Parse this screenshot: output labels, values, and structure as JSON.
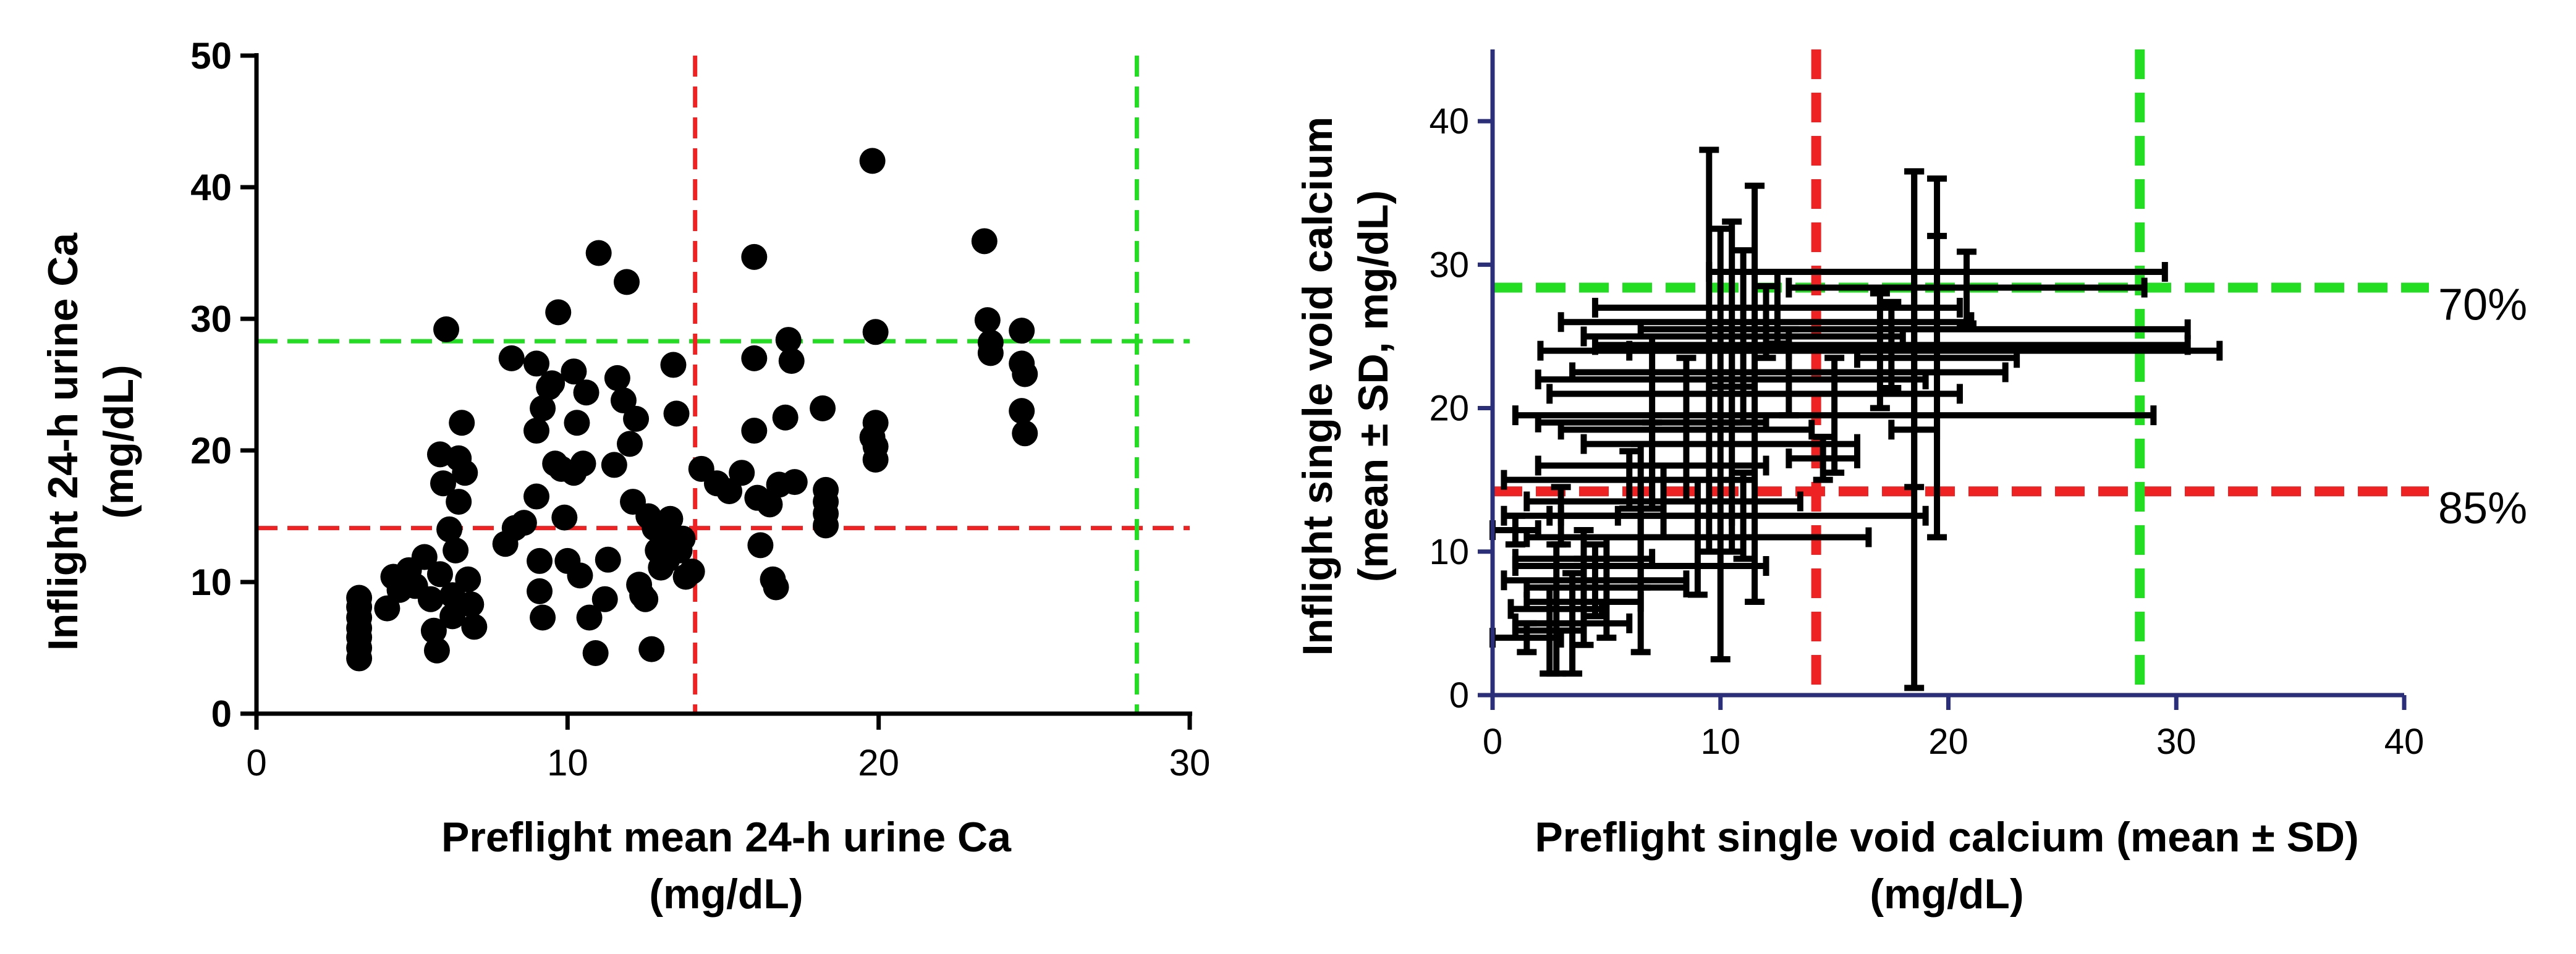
{
  "chart_data": [
    {
      "type": "scatter",
      "xlabel": "Preflight mean 24-h urine Ca",
      "xlabel_unit": "(mg/dL)",
      "ylabel": "Inflight 24-h urine Ca",
      "ylabel_unit": "(mg/dL)",
      "xlim": [
        0,
        30
      ],
      "ylim": [
        0,
        50
      ],
      "xticks": [
        "0",
        "10",
        "20",
        "30"
      ],
      "yticks": [
        "0",
        "10",
        "20",
        "30",
        "40",
        "50"
      ],
      "grid": false,
      "axis_color": "#000000",
      "point_color": "#000000",
      "reference_lines": [
        {
          "orientation": "horizontal",
          "value": 28.3,
          "color": "#22dd22"
        },
        {
          "orientation": "horizontal",
          "value": 14.1,
          "color": "#ee2222"
        },
        {
          "orientation": "vertical",
          "value": 14.1,
          "color": "#ee2222"
        },
        {
          "orientation": "vertical",
          "value": 28.3,
          "color": "#22dd22"
        }
      ],
      "points": [
        [
          3.3,
          4.2
        ],
        [
          3.3,
          5.0
        ],
        [
          3.3,
          5.8
        ],
        [
          3.3,
          6.5
        ],
        [
          3.3,
          7.3
        ],
        [
          3.3,
          8.1
        ],
        [
          3.3,
          8.8
        ],
        [
          4.2,
          8.0
        ],
        [
          4.4,
          10.4
        ],
        [
          4.6,
          9.4
        ],
        [
          4.9,
          10.9
        ],
        [
          5.1,
          9.7
        ],
        [
          5.4,
          11.9
        ],
        [
          5.6,
          8.7
        ],
        [
          5.7,
          6.3
        ],
        [
          5.8,
          4.8
        ],
        [
          5.9,
          10.6
        ],
        [
          5.9,
          19.7
        ],
        [
          6.0,
          17.5
        ],
        [
          6.1,
          29.2
        ],
        [
          6.2,
          14.0
        ],
        [
          6.3,
          9.0
        ],
        [
          6.3,
          7.4
        ],
        [
          6.4,
          12.4
        ],
        [
          6.5,
          16.1
        ],
        [
          6.5,
          19.4
        ],
        [
          6.6,
          22.1
        ],
        [
          6.7,
          18.3
        ],
        [
          6.8,
          10.2
        ],
        [
          6.9,
          8.3
        ],
        [
          7.0,
          6.6
        ],
        [
          8.0,
          12.9
        ],
        [
          8.2,
          27.0
        ],
        [
          8.3,
          14.1
        ],
        [
          8.6,
          14.5
        ],
        [
          9.0,
          26.6
        ],
        [
          9.0,
          16.5
        ],
        [
          9.0,
          21.5
        ],
        [
          9.1,
          11.6
        ],
        [
          9.1,
          9.3
        ],
        [
          9.2,
          7.3
        ],
        [
          9.2,
          23.2
        ],
        [
          9.4,
          24.8
        ],
        [
          9.5,
          25.1
        ],
        [
          9.6,
          19.0
        ],
        [
          9.7,
          30.5
        ],
        [
          9.8,
          18.6
        ],
        [
          9.9,
          14.9
        ],
        [
          10.0,
          11.6
        ],
        [
          10.2,
          18.3
        ],
        [
          10.2,
          26.0
        ],
        [
          10.3,
          22.1
        ],
        [
          10.4,
          10.5
        ],
        [
          10.5,
          19.0
        ],
        [
          10.6,
          24.4
        ],
        [
          10.7,
          7.3
        ],
        [
          10.9,
          4.6
        ],
        [
          11.0,
          35.0
        ],
        [
          11.2,
          8.7
        ],
        [
          11.3,
          11.7
        ],
        [
          11.5,
          18.9
        ],
        [
          11.6,
          25.5
        ],
        [
          11.8,
          23.8
        ],
        [
          11.9,
          32.8
        ],
        [
          12.0,
          20.5
        ],
        [
          12.1,
          16.1
        ],
        [
          12.2,
          22.4
        ],
        [
          12.3,
          9.8
        ],
        [
          12.4,
          9.0
        ],
        [
          12.5,
          8.7
        ],
        [
          12.6,
          15.0
        ],
        [
          12.7,
          4.9
        ],
        [
          12.8,
          14.1
        ],
        [
          12.9,
          12.4
        ],
        [
          13.0,
          11.1
        ],
        [
          13.1,
          13.6
        ],
        [
          13.2,
          11.7
        ],
        [
          13.3,
          14.8
        ],
        [
          13.4,
          26.5
        ],
        [
          13.5,
          22.8
        ],
        [
          13.6,
          12.4
        ],
        [
          13.7,
          13.3
        ],
        [
          13.8,
          10.4
        ],
        [
          14.0,
          10.8
        ],
        [
          14.3,
          18.6
        ],
        [
          14.8,
          17.5
        ],
        [
          15.2,
          16.9
        ],
        [
          15.6,
          18.3
        ],
        [
          16.0,
          34.7
        ],
        [
          16.0,
          27.0
        ],
        [
          16.0,
          21.5
        ],
        [
          16.1,
          16.4
        ],
        [
          16.2,
          12.8
        ],
        [
          16.5,
          15.9
        ],
        [
          16.6,
          10.2
        ],
        [
          16.7,
          9.6
        ],
        [
          16.8,
          17.4
        ],
        [
          17.0,
          22.5
        ],
        [
          17.1,
          28.4
        ],
        [
          17.2,
          26.8
        ],
        [
          17.3,
          17.6
        ],
        [
          18.2,
          23.2
        ],
        [
          18.3,
          17.0
        ],
        [
          18.3,
          16.1
        ],
        [
          18.3,
          15.2
        ],
        [
          18.3,
          14.3
        ],
        [
          19.8,
          42.0
        ],
        [
          19.9,
          29.0
        ],
        [
          19.9,
          22.1
        ],
        [
          19.8,
          21.0
        ],
        [
          19.9,
          20.3
        ],
        [
          19.9,
          19.3
        ],
        [
          23.4,
          35.9
        ],
        [
          23.5,
          29.9
        ],
        [
          23.6,
          28.2
        ],
        [
          23.6,
          27.4
        ],
        [
          24.6,
          29.1
        ],
        [
          24.6,
          26.6
        ],
        [
          24.7,
          25.8
        ],
        [
          24.6,
          23.0
        ],
        [
          24.7,
          21.3
        ]
      ]
    },
    {
      "type": "scatter",
      "xlabel": "Preflight single void calcium (mean ± SD)",
      "xlabel_unit": "(mg/dL)",
      "ylabel": "Inflight single void calcium",
      "ylabel_unit": "(mean ± SD, mg/dL)",
      "xlim": [
        0,
        40
      ],
      "ylim": [
        0,
        45
      ],
      "xticks": [
        "0",
        "10",
        "20",
        "30",
        "40"
      ],
      "yticks": [
        "0",
        "10",
        "20",
        "30",
        "40"
      ],
      "grid": false,
      "axis_color": "#2b2f7a",
      "errorbar_color": "#000000",
      "reference_lines": [
        {
          "orientation": "horizontal",
          "value": 28.4,
          "color": "#22dd22",
          "label": "70%"
        },
        {
          "orientation": "horizontal",
          "value": 14.2,
          "color": "#ee2222",
          "label": "85%"
        },
        {
          "orientation": "vertical",
          "value": 14.2,
          "color": "#ee2222"
        },
        {
          "orientation": "vertical",
          "value": 28.4,
          "color": "#22dd22"
        }
      ],
      "points": [
        {
          "x": 19.5,
          "y": 29.5,
          "x_err": 10,
          "y_err": 2.5
        },
        {
          "x": 20.8,
          "y": 28.4,
          "x_err": 7.8,
          "y_err": 2.5
        },
        {
          "x": 17.0,
          "y": 24.0,
          "x_err": 14.9,
          "y_err": 4.0
        },
        {
          "x": 18.5,
          "y": 25.5,
          "x_err": 12.0,
          "y_err": 11.0
        },
        {
          "x": 17.5,
          "y": 24.4,
          "x_err": 13.0,
          "y_err": 3.0
        },
        {
          "x": 12.5,
          "y": 27.0,
          "x_err": 8.0,
          "y_err": 2.5
        },
        {
          "x": 12.0,
          "y": 26.0,
          "x_err": 9.0,
          "y_err": 2.5
        },
        {
          "x": 19.5,
          "y": 23.5,
          "x_err": 3.5,
          "y_err": 12.5
        },
        {
          "x": 9.5,
          "y": 24.0,
          "x_err": 3.5,
          "y_err": 14.0
        },
        {
          "x": 11.0,
          "y": 25.0,
          "x_err": 7.0,
          "y_err": 6.0
        },
        {
          "x": 10.5,
          "y": 22.0,
          "x_err": 8.5,
          "y_err": 3.0
        },
        {
          "x": 11.5,
          "y": 21.0,
          "x_err": 9.0,
          "y_err": 14.5
        },
        {
          "x": 15.0,
          "y": 19.5,
          "x_err": 14.0,
          "y_err": 4.0
        },
        {
          "x": 7.0,
          "y": 19.0,
          "x_err": 5.0,
          "y_err": 6.0
        },
        {
          "x": 8.5,
          "y": 18.5,
          "x_err": 5.5,
          "y_err": 5.0
        },
        {
          "x": 10.0,
          "y": 17.5,
          "x_err": 6.0,
          "y_err": 15.0
        },
        {
          "x": 14.5,
          "y": 16.5,
          "x_err": 1.5,
          "y_err": 1.5
        },
        {
          "x": 13.0,
          "y": 22.5,
          "x_err": 9.5,
          "y_err": 3.0
        },
        {
          "x": 7.5,
          "y": 13.5,
          "x_err": 6.0,
          "y_err": 2.5
        },
        {
          "x": 11.0,
          "y": 12.5,
          "x_err": 8.0,
          "y_err": 3.0
        },
        {
          "x": 9.0,
          "y": 11.0,
          "x_err": 7.5,
          "y_err": 4.0
        },
        {
          "x": 18.5,
          "y": 18.5,
          "x_err": 1.0,
          "y_err": 18.0
        },
        {
          "x": 10.5,
          "y": 21.5,
          "x_err": 1.0,
          "y_err": 11.5
        },
        {
          "x": 7.0,
          "y": 16.0,
          "x_err": 5.0,
          "y_err": 3.0
        },
        {
          "x": 6.0,
          "y": 15.0,
          "x_err": 5.5,
          "y_err": 2.0
        },
        {
          "x": 4.0,
          "y": 9.5,
          "x_err": 3.0,
          "y_err": 2.0
        },
        {
          "x": 4.5,
          "y": 8.0,
          "x_err": 4.0,
          "y_err": 2.5
        },
        {
          "x": 5.0,
          "y": 7.5,
          "x_err": 3.5,
          "y_err": 3.5
        },
        {
          "x": 6.5,
          "y": 9.0,
          "x_err": 5.5,
          "y_err": 6.0
        },
        {
          "x": 2.8,
          "y": 6.0,
          "x_err": 2.0,
          "y_err": 4.5
        },
        {
          "x": 3.5,
          "y": 5.0,
          "x_err": 2.5,
          "y_err": 3.5
        },
        {
          "x": 1.5,
          "y": 4.0,
          "x_err": 1.5,
          "y_err": 1.0
        },
        {
          "x": 2.5,
          "y": 4.5,
          "x_err": 1.5,
          "y_err": 3.0
        },
        {
          "x": 4.0,
          "y": 6.5,
          "x_err": 2.5,
          "y_err": 3.0
        },
        {
          "x": 1.0,
          "y": 11.5,
          "x_err": 1.0,
          "y_err": 1.0
        },
        {
          "x": 6.5,
          "y": 12.5,
          "x_err": 4.0,
          "y_err": 5.0
        },
        {
          "x": 3.0,
          "y": 12.5,
          "x_err": 2.5,
          "y_err": 2.0
        }
      ]
    }
  ]
}
